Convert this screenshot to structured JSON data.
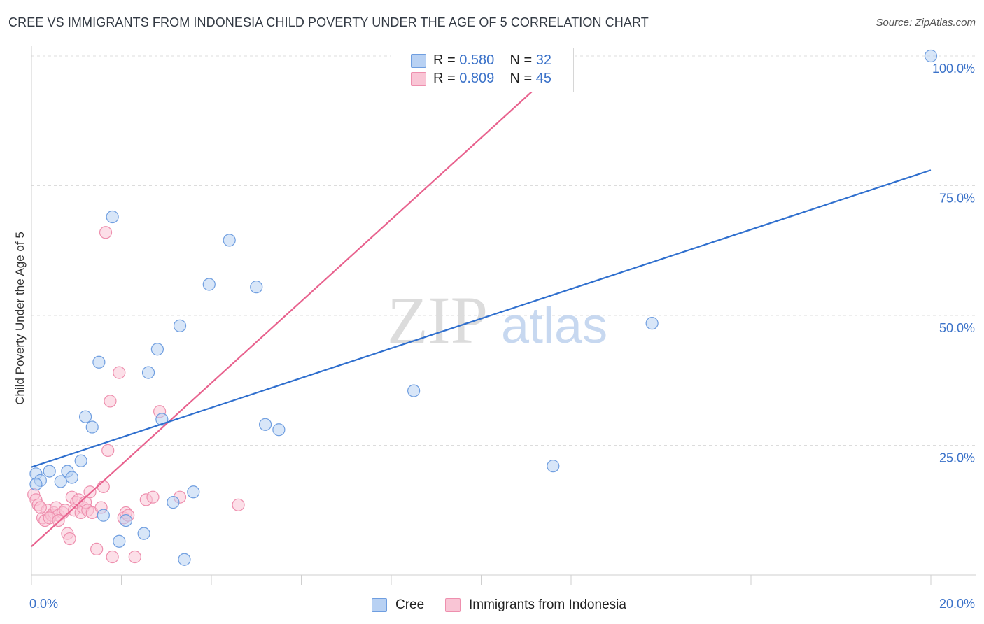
{
  "header": {
    "title": "CREE VS IMMIGRANTS FROM INDONESIA CHILD POVERTY UNDER THE AGE OF 5 CORRELATION CHART",
    "source": "Source: ZipAtlas.com"
  },
  "watermark": {
    "zip": "ZIP",
    "atlas": "atlas"
  },
  "stats_legend": [
    {
      "r_label": "R =",
      "r_value": "0.580",
      "n_label": "N =",
      "n_value": "32"
    },
    {
      "r_label": "R =",
      "r_value": "0.809",
      "n_label": "N =",
      "n_value": "45"
    }
  ],
  "bottom_legend": {
    "cree": "Cree",
    "indonesia": "Immigrants from Indonesia"
  },
  "colors": {
    "cree_fill": "#b8d1f3",
    "cree_stroke": "#6f9ee0",
    "cree_line": "#2f6fce",
    "indo_fill": "#f9c5d5",
    "indo_stroke": "#ee8fae",
    "indo_line": "#e8628e",
    "tick_text": "#3b72c9"
  },
  "chart_data": {
    "type": "scatter",
    "title": "CREE VS IMMIGRANTS FROM INDONESIA CHILD POVERTY UNDER THE AGE OF 5 CORRELATION CHART",
    "xlabel": "",
    "ylabel": "Child Poverty Under the Age of 5",
    "xlim": [
      0,
      20
    ],
    "ylim": [
      0,
      100
    ],
    "x_tick_labels": [
      "0.0%",
      "20.0%"
    ],
    "y_tick_labels": [
      "25.0%",
      "50.0%",
      "75.0%",
      "100.0%"
    ],
    "y_ticks": [
      25,
      50,
      75,
      100
    ],
    "grid": "horizontal dashed",
    "legend": "top-center",
    "series": [
      {
        "name": "Cree",
        "r": 0.58,
        "n": 32,
        "trend": {
          "x": [
            0,
            20
          ],
          "y": [
            20.8,
            78.0
          ]
        },
        "points": [
          [
            0.1,
            19.5
          ],
          [
            0.2,
            18.2
          ],
          [
            0.4,
            20.0
          ],
          [
            0.65,
            18.0
          ],
          [
            0.8,
            20.0
          ],
          [
            0.9,
            18.8
          ],
          [
            1.1,
            22.0
          ],
          [
            1.2,
            30.5
          ],
          [
            1.35,
            28.5
          ],
          [
            1.5,
            41.0
          ],
          [
            1.6,
            11.5
          ],
          [
            1.8,
            69.0
          ],
          [
            1.95,
            6.5
          ],
          [
            2.1,
            10.5
          ],
          [
            2.5,
            8.0
          ],
          [
            2.6,
            39.0
          ],
          [
            2.8,
            43.5
          ],
          [
            2.9,
            30.0
          ],
          [
            3.15,
            14.0
          ],
          [
            3.3,
            48.0
          ],
          [
            3.4,
            3.0
          ],
          [
            3.6,
            16.0
          ],
          [
            3.95,
            56.0
          ],
          [
            4.4,
            64.5
          ],
          [
            5.0,
            55.5
          ],
          [
            5.2,
            29.0
          ],
          [
            5.5,
            28.0
          ],
          [
            8.5,
            35.5
          ],
          [
            11.6,
            21.0
          ],
          [
            13.8,
            48.5
          ],
          [
            20.0,
            100.0
          ],
          [
            0.1,
            17.5
          ]
        ]
      },
      {
        "name": "Immigrants from Indonesia",
        "r": 0.809,
        "n": 45,
        "trend": {
          "x": [
            0,
            12
          ],
          "y": [
            5.5,
            100.0
          ]
        },
        "points": [
          [
            0.05,
            15.5
          ],
          [
            0.1,
            14.5
          ],
          [
            0.15,
            13.5
          ],
          [
            0.25,
            11.0
          ],
          [
            0.3,
            10.5
          ],
          [
            0.35,
            12.5
          ],
          [
            0.45,
            11.5
          ],
          [
            0.5,
            12.0
          ],
          [
            0.55,
            13.0
          ],
          [
            0.6,
            11.5
          ],
          [
            0.7,
            12.0
          ],
          [
            0.75,
            12.5
          ],
          [
            0.8,
            8.0
          ],
          [
            0.85,
            7.0
          ],
          [
            0.9,
            15.0
          ],
          [
            0.95,
            12.5
          ],
          [
            1.0,
            14.0
          ],
          [
            1.05,
            14.5
          ],
          [
            1.1,
            12.0
          ],
          [
            1.15,
            13.0
          ],
          [
            1.2,
            14.0
          ],
          [
            1.25,
            12.5
          ],
          [
            1.3,
            16.0
          ],
          [
            1.35,
            12.0
          ],
          [
            1.45,
            5.0
          ],
          [
            1.55,
            13.0
          ],
          [
            1.6,
            17.0
          ],
          [
            1.65,
            66.0
          ],
          [
            1.7,
            24.0
          ],
          [
            1.75,
            33.5
          ],
          [
            1.8,
            3.5
          ],
          [
            1.95,
            39.0
          ],
          [
            2.05,
            11.0
          ],
          [
            2.1,
            12.0
          ],
          [
            2.15,
            11.5
          ],
          [
            2.3,
            3.5
          ],
          [
            2.55,
            14.5
          ],
          [
            2.7,
            15.0
          ],
          [
            2.85,
            31.5
          ],
          [
            3.3,
            15.0
          ],
          [
            4.6,
            13.5
          ],
          [
            10.7,
            100.0
          ],
          [
            0.2,
            13.0
          ],
          [
            0.4,
            11.0
          ],
          [
            0.6,
            10.5
          ]
        ]
      }
    ]
  }
}
